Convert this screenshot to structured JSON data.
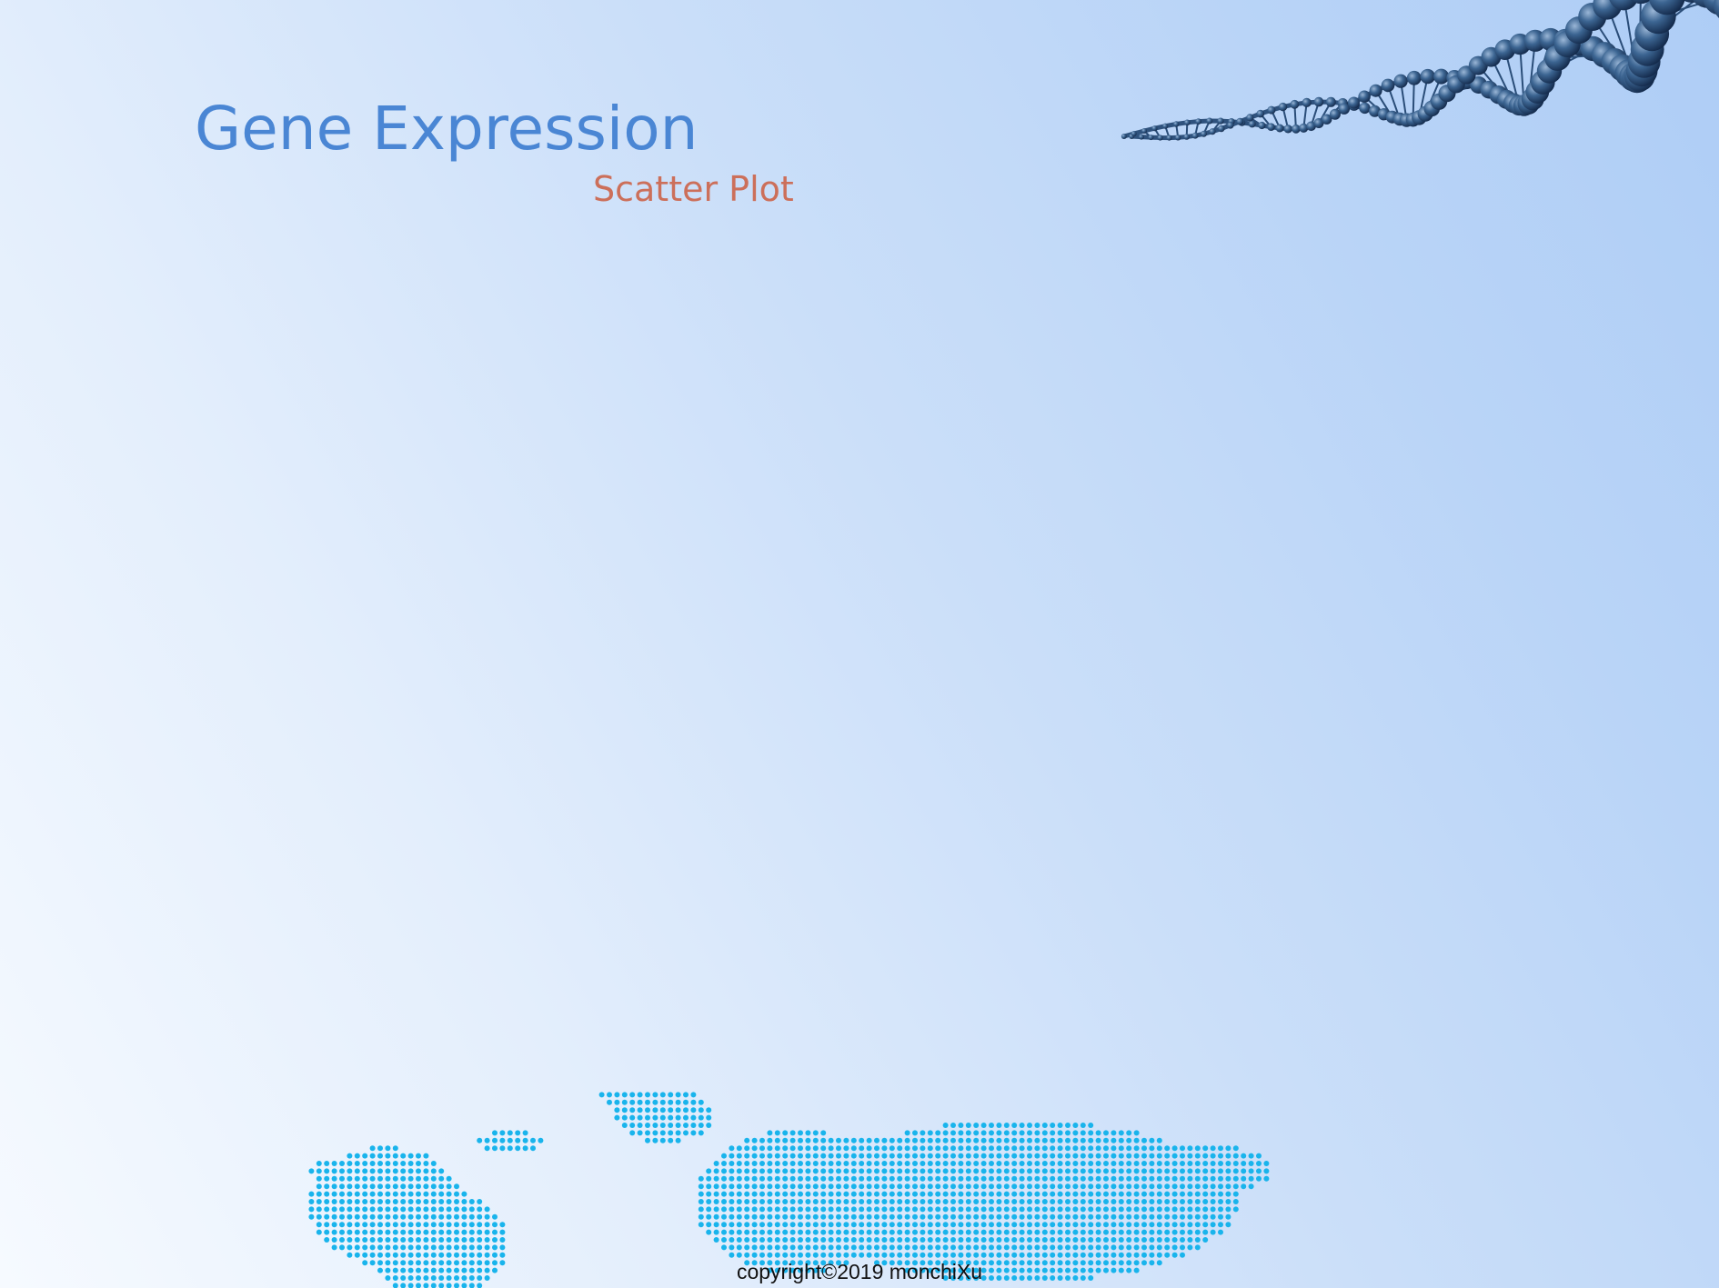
{
  "slide": {
    "title": "Gene Expression",
    "subtitle": "Scatter Plot",
    "footer": "copyright©2019 monchiXu",
    "decorations": [
      "dna-helix-graphic",
      "dotted-world-map-graphic"
    ]
  },
  "colors": {
    "title": "#4a86d4",
    "subtitle": "#cc6f5a",
    "map_dots": "#19b4ec",
    "helix": "#2a4d78"
  }
}
